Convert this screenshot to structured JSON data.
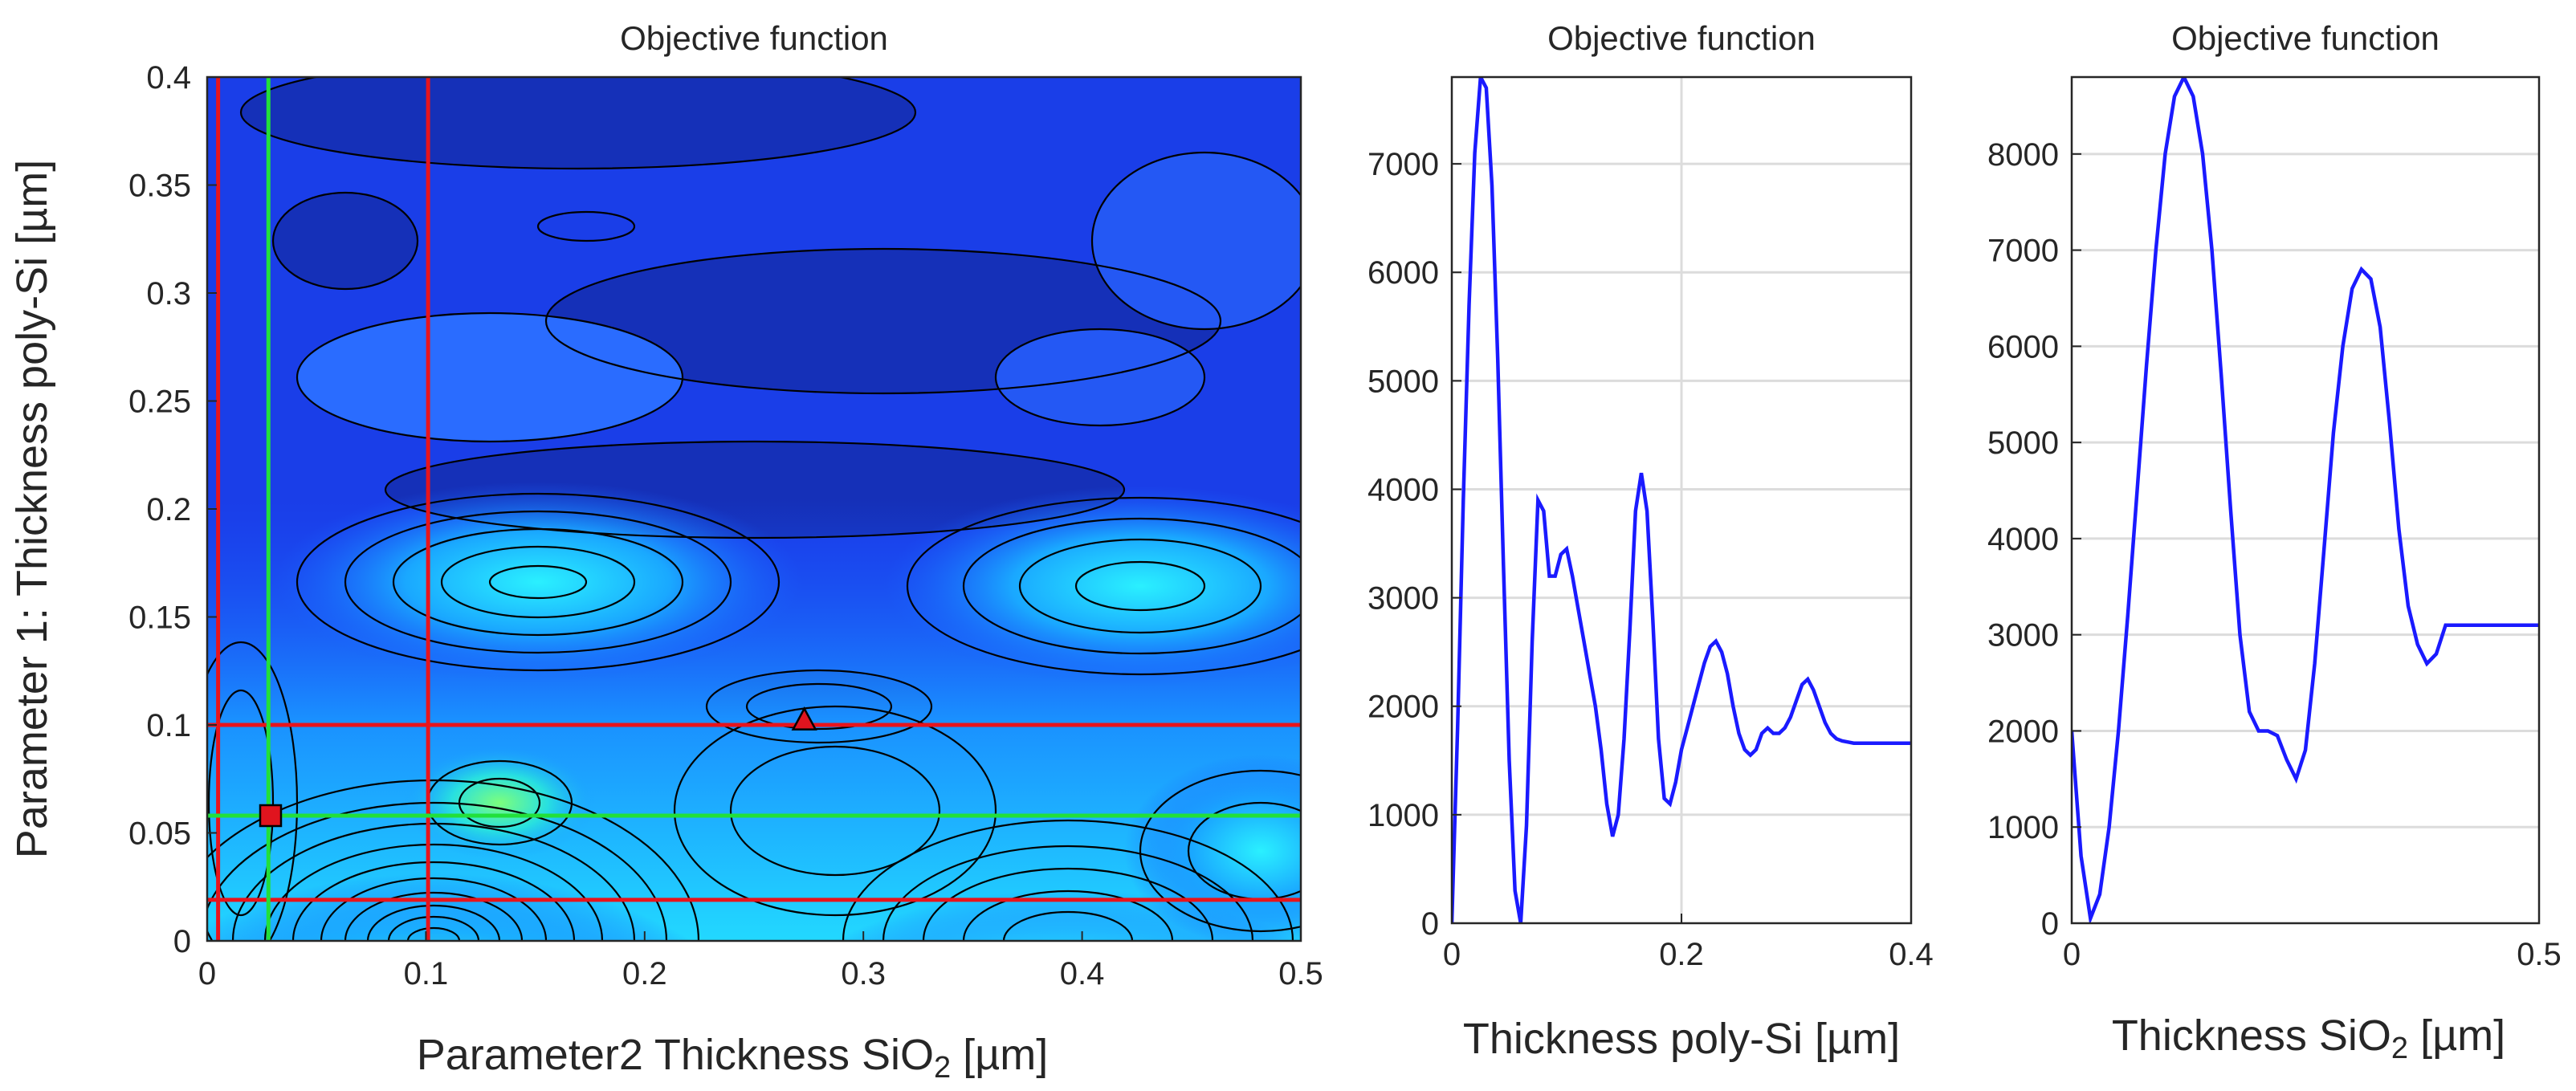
{
  "chart_data": [
    {
      "type": "contour",
      "title": "Objective function",
      "xlabel_prefix": "Parameter2 Thickness SiO",
      "xlabel_sub": "2",
      "xlabel_suffix": " [µm]",
      "ylabel": "Parameter 1: Thickness poly-Si [µm]",
      "xlim": [
        0,
        0.5
      ],
      "ylim": [
        0,
        0.4
      ],
      "xticks": [
        0,
        0.1,
        0.2,
        0.3,
        0.4,
        0.5
      ],
      "xtick_labels": [
        "0",
        "0.1",
        "0.2",
        "0.3",
        "0.4",
        "0.5"
      ],
      "yticks": [
        0,
        0.05,
        0.1,
        0.15,
        0.2,
        0.25,
        0.3,
        0.35,
        0.4
      ],
      "ytick_labels": [
        "0",
        "0.05",
        "0.1",
        "0.15",
        "0.2",
        "0.25",
        "0.3",
        "0.35",
        "0.4"
      ],
      "colormap": "jet",
      "grid": false,
      "red_vertical_lines_x": [
        0.005,
        0.101
      ],
      "red_horizontal_lines_y": [
        0.1,
        0.019
      ],
      "green_vertical_line_x": 0.028,
      "green_horizontal_line_y": 0.058,
      "square_marker": {
        "x": 0.029,
        "y": 0.058,
        "color": "#e0141e"
      },
      "triangle_marker": {
        "x": 0.273,
        "y": 0.102,
        "color": "#e0141e"
      },
      "line_colors": {
        "red": "#e8141c",
        "green": "#22e03a",
        "contour": "#000000"
      }
    },
    {
      "type": "line",
      "title": "Objective function",
      "xlabel": "Thickness poly-Si [µm]",
      "xlim": [
        0,
        0.4
      ],
      "ylim": [
        0,
        7800
      ],
      "xticks": [
        0,
        0.2,
        0.4
      ],
      "xtick_labels": [
        "0",
        "0.2",
        "0.4"
      ],
      "yticks": [
        0,
        1000,
        2000,
        3000,
        4000,
        5000,
        6000,
        7000
      ],
      "ytick_labels": [
        "0",
        "1000",
        "2000",
        "3000",
        "4000",
        "5000",
        "6000",
        "7000"
      ],
      "grid": true,
      "line_color": "#1a1aff",
      "x": [
        0.0,
        0.005,
        0.01,
        0.015,
        0.02,
        0.025,
        0.03,
        0.035,
        0.04,
        0.045,
        0.05,
        0.055,
        0.06,
        0.065,
        0.07,
        0.075,
        0.08,
        0.085,
        0.09,
        0.095,
        0.1,
        0.105,
        0.11,
        0.115,
        0.12,
        0.125,
        0.13,
        0.135,
        0.14,
        0.145,
        0.15,
        0.155,
        0.16,
        0.165,
        0.17,
        0.175,
        0.18,
        0.185,
        0.19,
        0.195,
        0.2,
        0.205,
        0.21,
        0.215,
        0.22,
        0.225,
        0.23,
        0.235,
        0.24,
        0.245,
        0.25,
        0.255,
        0.26,
        0.265,
        0.27,
        0.275,
        0.28,
        0.285,
        0.29,
        0.295,
        0.3,
        0.305,
        0.31,
        0.315,
        0.32,
        0.325,
        0.33,
        0.335,
        0.34,
        0.345,
        0.35,
        0.355,
        0.36,
        0.365,
        0.37,
        0.375,
        0.38,
        0.385,
        0.39,
        0.395,
        0.4
      ],
      "y": [
        0,
        1800,
        3900,
        5700,
        7100,
        7800,
        7700,
        6800,
        5200,
        3300,
        1500,
        300,
        0,
        900,
        2600,
        3900,
        3800,
        3200,
        3200,
        3400,
        3450,
        3200,
        2900,
        2600,
        2300,
        2000,
        1600,
        1100,
        800,
        1000,
        1700,
        2700,
        3800,
        4150,
        3800,
        2800,
        1700,
        1150,
        1100,
        1300,
        1600,
        1800,
        2000,
        2200,
        2400,
        2550,
        2600,
        2500,
        2300,
        2000,
        1750,
        1600,
        1550,
        1600,
        1750,
        1800,
        1750,
        1750,
        1800,
        1900,
        2050,
        2200,
        2250,
        2150,
        2000,
        1850,
        1750,
        1700,
        1680,
        1670,
        1660,
        1660,
        1660,
        1660,
        1660,
        1660,
        1660,
        1660,
        1660,
        1660,
        1660
      ]
    },
    {
      "type": "line",
      "title": "Objective function",
      "xlabel_prefix": "Thickness SiO",
      "xlabel_sub": "2",
      "xlabel_suffix": " [µm]",
      "xlim": [
        0,
        0.5
      ],
      "ylim": [
        0,
        8800
      ],
      "xticks": [
        0,
        0.5
      ],
      "xtick_labels": [
        "0",
        "0.5"
      ],
      "yticks": [
        0,
        1000,
        2000,
        3000,
        4000,
        5000,
        6000,
        7000,
        8000
      ],
      "ytick_labels": [
        "0",
        "1000",
        "2000",
        "3000",
        "4000",
        "5000",
        "6000",
        "7000",
        "8000"
      ],
      "grid": true,
      "line_color": "#1a1aff",
      "x": [
        0.0,
        0.01,
        0.02,
        0.03,
        0.04,
        0.05,
        0.06,
        0.07,
        0.08,
        0.09,
        0.1,
        0.11,
        0.12,
        0.13,
        0.14,
        0.15,
        0.16,
        0.17,
        0.18,
        0.19,
        0.2,
        0.21,
        0.22,
        0.23,
        0.24,
        0.25,
        0.26,
        0.27,
        0.28,
        0.29,
        0.3,
        0.31,
        0.32,
        0.33,
        0.34,
        0.35,
        0.36,
        0.37,
        0.38,
        0.39,
        0.4,
        0.41,
        0.42,
        0.43,
        0.44,
        0.45,
        0.46,
        0.47,
        0.48,
        0.49,
        0.5
      ],
      "y": [
        2000,
        700,
        50,
        300,
        1000,
        2000,
        3200,
        4500,
        5800,
        7000,
        8000,
        8600,
        8800,
        8600,
        8000,
        7000,
        5700,
        4300,
        3000,
        2200,
        2000,
        2000,
        1950,
        1700,
        1500,
        1800,
        2700,
        3900,
        5100,
        6000,
        6600,
        6800,
        6700,
        6200,
        5200,
        4100,
        3300,
        2900,
        2700,
        2800,
        3100,
        3100,
        3100,
        3100,
        3100,
        3100,
        3100,
        3100,
        3100,
        3100,
        3100
      ]
    }
  ]
}
